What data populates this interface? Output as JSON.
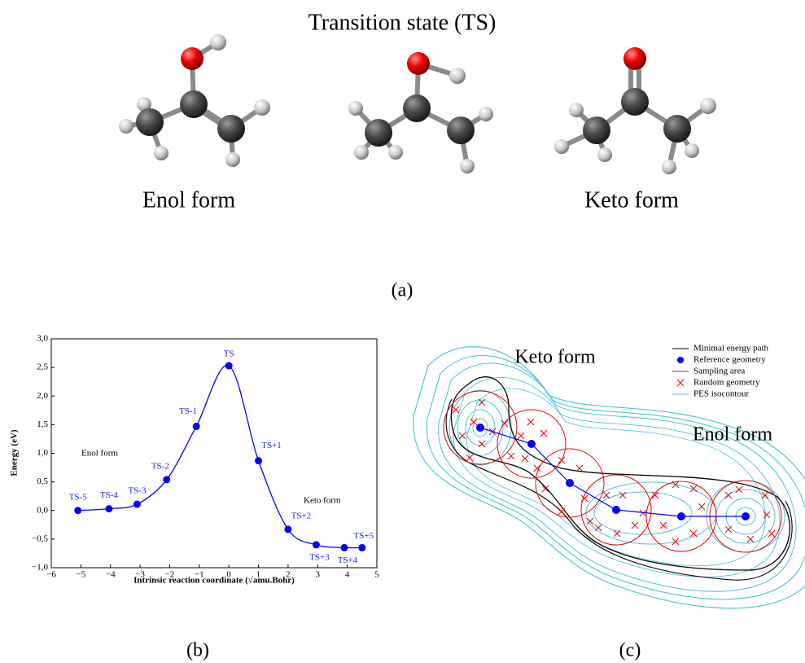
{
  "panel_a": {
    "title": "Transition state (TS)",
    "enol_label": "Enol form",
    "keto_label": "Keto form",
    "caption": "(a)"
  },
  "chart_data": {
    "type": "line",
    "color": "#0000ff",
    "x": [
      -5.1,
      -4.05,
      -3.1,
      -2.1,
      -1.1,
      0,
      1.0,
      2.0,
      2.95,
      3.9,
      4.5
    ],
    "values": [
      0.0,
      0.03,
      0.11,
      0.54,
      1.47,
      2.53,
      0.87,
      -0.33,
      -0.6,
      -0.65,
      -0.65
    ],
    "point_labels": [
      "TS-5",
      "TS-4",
      "TS-3",
      "TS-2",
      "TS-1",
      "TS",
      "TS+1",
      "TS+2",
      "TS+3",
      "TS+4",
      "TS+5"
    ],
    "xlim": [
      -6,
      5
    ],
    "xticks": [
      {
        "value": -6,
        "label": "−6"
      },
      {
        "value": -5,
        "label": "−5"
      },
      {
        "value": -4,
        "label": "−4"
      },
      {
        "value": -3,
        "label": "−3"
      },
      {
        "value": -2,
        "label": "−2"
      },
      {
        "value": -1,
        "label": "−1"
      },
      0,
      1,
      2,
      3,
      4,
      5
    ],
    "ylim": [
      -1,
      3
    ],
    "yticks": [
      {
        "value": -1,
        "label": "−1,0"
      },
      {
        "value": -0.5,
        "label": "−0,5"
      },
      {
        "value": 0,
        "label": "0,0"
      },
      {
        "value": 0.5,
        "label": "0,5"
      },
      {
        "value": 1,
        "label": "1,0"
      },
      {
        "value": 1.5,
        "label": "1,5"
      },
      {
        "value": 2,
        "label": "2,0"
      },
      {
        "value": 2.5,
        "label": "2,5"
      },
      {
        "value": 3,
        "label": "3,0"
      }
    ],
    "ylabel": "Energy (eV)",
    "xlabel": "Intrinsic reaction coordinate (√amu.Bohr)",
    "annotations": [
      "Enol form",
      "Keto form"
    ],
    "caption": "(b)"
  },
  "panel_c": {
    "keto_label": "Keto form",
    "enol_label": "Enol form",
    "legend": [
      "Minimal energy path",
      "Reference geometry",
      "Sampling area",
      "Random geometry",
      "PES isocontour"
    ],
    "caption": "(c)"
  }
}
